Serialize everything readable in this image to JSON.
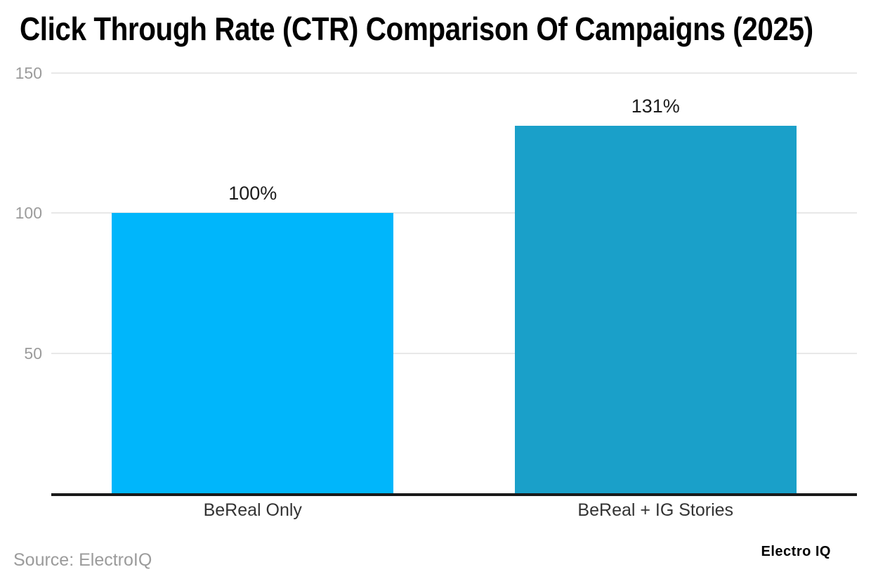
{
  "title": "Click Through Rate (CTR) Comparison Of Campaigns (2025)",
  "footer": {
    "source": "Source: ElectroIQ",
    "brand": "Electro IQ"
  },
  "chart_data": {
    "type": "bar",
    "title": "Click Through Rate (CTR) Comparison Of Campaigns (2025)",
    "categories": [
      "BeReal Only",
      "BeReal + IG Stories"
    ],
    "values": [
      100,
      131
    ],
    "value_labels": [
      "100%",
      "131%"
    ],
    "xlabel": "",
    "ylabel": "",
    "ylim": [
      0,
      150
    ],
    "yticks": [
      150,
      100,
      50
    ],
    "grid": true,
    "legend_position": "none",
    "bar_colors": [
      "#00B6FB",
      "#1AA0C9"
    ],
    "colors": {
      "gridline": "#e8e8e8",
      "axis": "#1a1a1a",
      "tick_text": "#9b9b9b",
      "value_text": "#1c1c1c",
      "category_text": "#333333",
      "background": "#ffffff"
    }
  }
}
